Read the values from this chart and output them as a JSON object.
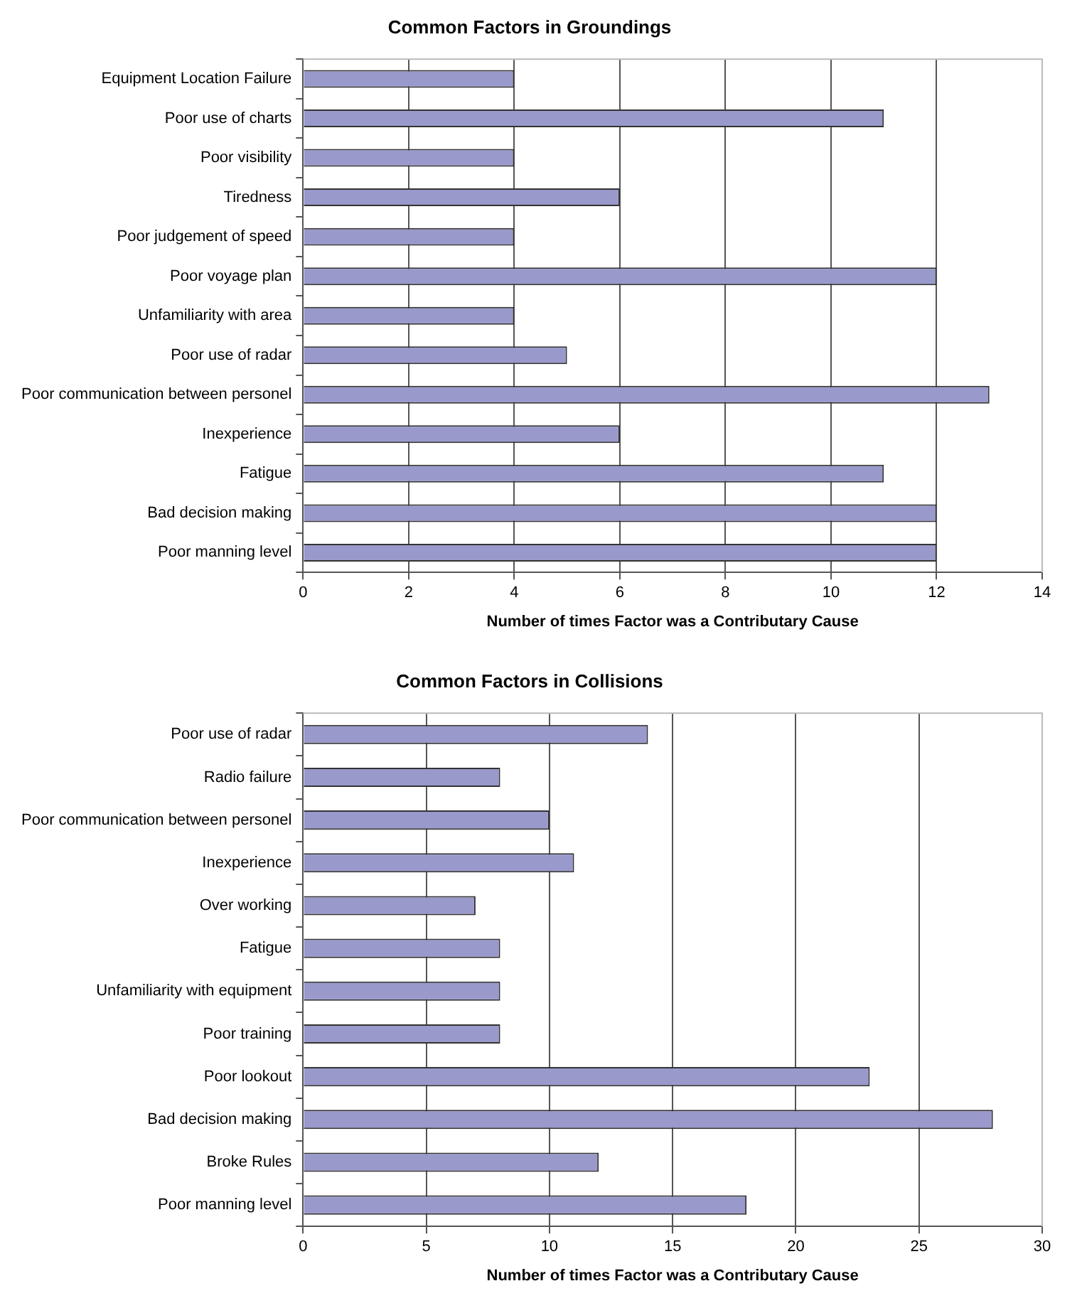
{
  "chart_data": [
    {
      "type": "bar",
      "orientation": "horizontal",
      "title": "Common Factors in Groundings",
      "xlabel": "Number of times Factor was a Contributary Cause",
      "categories": [
        "Equipment Location Failure",
        "Poor use of charts",
        "Poor visibility",
        "Tiredness",
        "Poor judgement of speed",
        "Poor voyage plan",
        "Unfamiliarity with area",
        "Poor use of radar",
        "Poor communication between personel",
        "Inexperience",
        "Fatigue",
        "Bad decision making",
        "Poor manning level"
      ],
      "values": [
        4,
        11,
        4,
        6,
        4,
        12,
        4,
        5,
        13,
        6,
        11,
        12,
        12
      ],
      "color": "#9999cc",
      "xlim": [
        0,
        14
      ],
      "xticks": [
        0,
        2,
        4,
        6,
        8,
        10,
        12,
        14
      ],
      "grid": "x",
      "legend": false
    },
    {
      "type": "bar",
      "orientation": "horizontal",
      "title": "Common Factors in Collisions",
      "xlabel": "Number of times Factor was a Contributary Cause",
      "categories": [
        "Poor use of radar",
        "Radio failure",
        "Poor communication between personel",
        "Inexperience",
        "Over working",
        "Fatigue",
        "Unfamiliarity with equipment",
        "Poor training",
        "Poor lookout",
        "Bad decision making",
        "Broke Rules",
        "Poor manning level"
      ],
      "values": [
        14,
        8,
        10,
        11,
        7,
        8,
        8,
        8,
        23,
        28,
        12,
        18
      ],
      "color": "#9999cc",
      "xlim": [
        0,
        30
      ],
      "xticks": [
        0,
        5,
        10,
        15,
        20,
        25,
        30
      ],
      "grid": "x",
      "legend": false
    }
  ]
}
